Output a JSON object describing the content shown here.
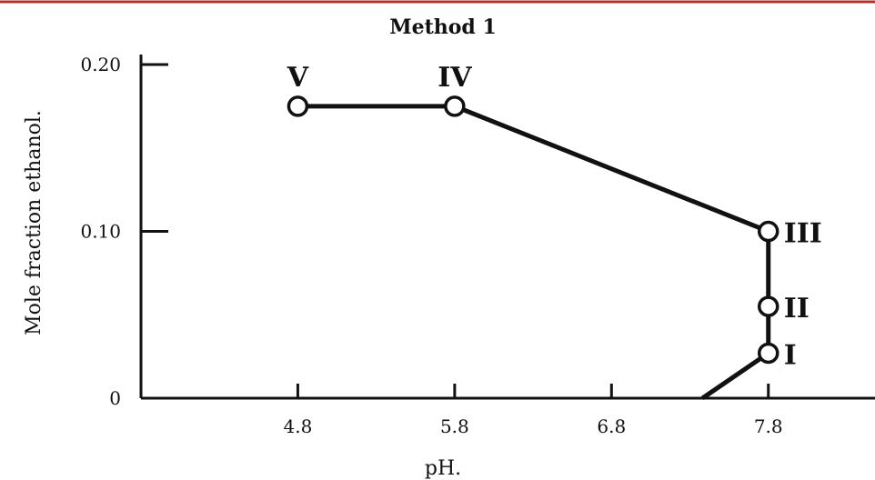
{
  "chart_data": {
    "type": "line",
    "title": "Method 1",
    "xlabel": "pH.",
    "ylabel": "Mole fraction ethanol.",
    "x_ticks": [
      "4.8",
      "5.8",
      "6.8",
      "7.8"
    ],
    "y_ticks": [
      "0",
      "0.10",
      "0.20"
    ],
    "xlim": [
      3.8,
      8.48
    ],
    "ylim": [
      0,
      0.206
    ],
    "grid": false,
    "series": [
      {
        "points": [
          {
            "x": 4.8,
            "y": 0.175,
            "label": "V"
          },
          {
            "x": 5.8,
            "y": 0.175,
            "label": "IV"
          },
          {
            "x": 7.8,
            "y": 0.1,
            "label": "III"
          },
          {
            "x": 7.8,
            "y": 0.055,
            "label": "II"
          },
          {
            "x": 7.8,
            "y": 0.027,
            "label": "I"
          }
        ],
        "tail_to": {
          "x": 7.38,
          "y": 0
        }
      }
    ]
  }
}
